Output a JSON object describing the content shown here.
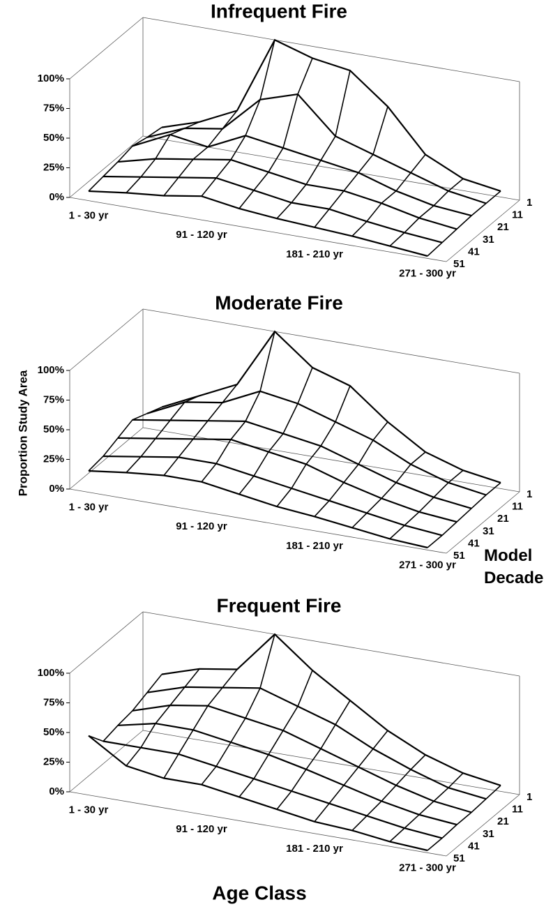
{
  "chart_data": [
    {
      "type": "wireframe",
      "title": "Infrequent Fire",
      "categories": [
        "1 -  30 yr",
        null,
        null,
        "91 - 120 yr",
        null,
        null,
        "181 - 210 yr",
        null,
        null,
        "271 - 300 yr"
      ],
      "series": [
        {
          "name": "1",
          "values": [
            10,
            20,
            35,
            100,
            90,
            85,
            60,
            25,
            10,
            5
          ]
        },
        {
          "name": "11",
          "values": [
            12,
            25,
            30,
            60,
            70,
            40,
            30,
            20,
            10,
            5
          ]
        },
        {
          "name": "21",
          "values": [
            15,
            30,
            25,
            40,
            35,
            30,
            25,
            15,
            8,
            5
          ]
        },
        {
          "name": "31",
          "values": [
            12,
            20,
            25,
            30,
            25,
            20,
            20,
            15,
            8,
            4
          ]
        },
        {
          "name": "41",
          "values": [
            10,
            15,
            20,
            25,
            20,
            15,
            15,
            10,
            6,
            3
          ]
        },
        {
          "name": "51",
          "values": [
            8,
            12,
            15,
            20,
            15,
            12,
            10,
            8,
            5,
            2
          ]
        }
      ],
      "ylim": [
        0,
        100
      ],
      "yticks": [
        {
          "value": 0,
          "label": "0%"
        },
        {
          "value": 25,
          "label": "25%"
        },
        {
          "value": 50,
          "label": "50%"
        },
        {
          "value": 75,
          "label": "75%"
        },
        {
          "value": 100,
          "label": "100%"
        }
      ]
    },
    {
      "type": "wireframe",
      "title": "Moderate Fire",
      "categories": [
        "1 -  30 yr",
        null,
        null,
        "91 - 120 yr",
        null,
        null,
        "181 - 210 yr",
        null,
        null,
        "271 - 300 yr"
      ],
      "series": [
        {
          "name": "1",
          "values": [
            20,
            35,
            50,
            100,
            75,
            65,
            40,
            20,
            10,
            5
          ]
        },
        {
          "name": "11",
          "values": [
            25,
            40,
            45,
            60,
            55,
            45,
            35,
            20,
            10,
            5
          ]
        },
        {
          "name": "21",
          "values": [
            30,
            35,
            40,
            45,
            40,
            35,
            25,
            15,
            8,
            4
          ]
        },
        {
          "name": "31",
          "values": [
            25,
            30,
            35,
            40,
            35,
            30,
            20,
            12,
            6,
            3
          ]
        },
        {
          "name": "41",
          "values": [
            20,
            25,
            30,
            30,
            25,
            20,
            15,
            10,
            5,
            2
          ]
        },
        {
          "name": "51",
          "values": [
            18,
            22,
            25,
            25,
            20,
            15,
            12,
            8,
            4,
            2
          ]
        }
      ],
      "ylim": [
        0,
        100
      ],
      "yticks": [
        {
          "value": 0,
          "label": "0%"
        },
        {
          "value": 25,
          "label": "25%"
        },
        {
          "value": 50,
          "label": "50%"
        },
        {
          "value": 75,
          "label": "75%"
        },
        {
          "value": 100,
          "label": "100%"
        }
      ],
      "y_label": "Proportion Study Area",
      "z_label": "Model Decade"
    },
    {
      "type": "wireframe",
      "title": "Frequent Fire",
      "categories": [
        "1 -  30 yr",
        null,
        null,
        "91 - 120 yr",
        null,
        null,
        "181 - 210 yr",
        null,
        null,
        "271 - 300 yr"
      ],
      "series": [
        {
          "name": "1",
          "values": [
            50,
            60,
            65,
            100,
            75,
            55,
            35,
            20,
            10,
            5
          ]
        },
        {
          "name": "11",
          "values": [
            45,
            55,
            60,
            65,
            55,
            45,
            30,
            18,
            8,
            4
          ]
        },
        {
          "name": "21",
          "values": [
            40,
            50,
            55,
            50,
            45,
            35,
            25,
            15,
            7,
            3
          ]
        },
        {
          "name": "31",
          "values": [
            38,
            45,
            45,
            40,
            35,
            28,
            20,
            12,
            6,
            3
          ]
        },
        {
          "name": "41",
          "values": [
            35,
            35,
            35,
            30,
            25,
            20,
            15,
            10,
            5,
            2
          ]
        },
        {
          "name": "51",
          "values": [
            50,
            30,
            25,
            25,
            20,
            15,
            10,
            8,
            4,
            2
          ]
        }
      ],
      "ylim": [
        0,
        100
      ],
      "yticks": [
        {
          "value": 0,
          "label": "0%"
        },
        {
          "value": 25,
          "label": "25%"
        },
        {
          "value": 50,
          "label": "50%"
        },
        {
          "value": 75,
          "label": "75%"
        },
        {
          "value": 100,
          "label": "100%"
        }
      ],
      "x_label": "Age Class"
    }
  ]
}
